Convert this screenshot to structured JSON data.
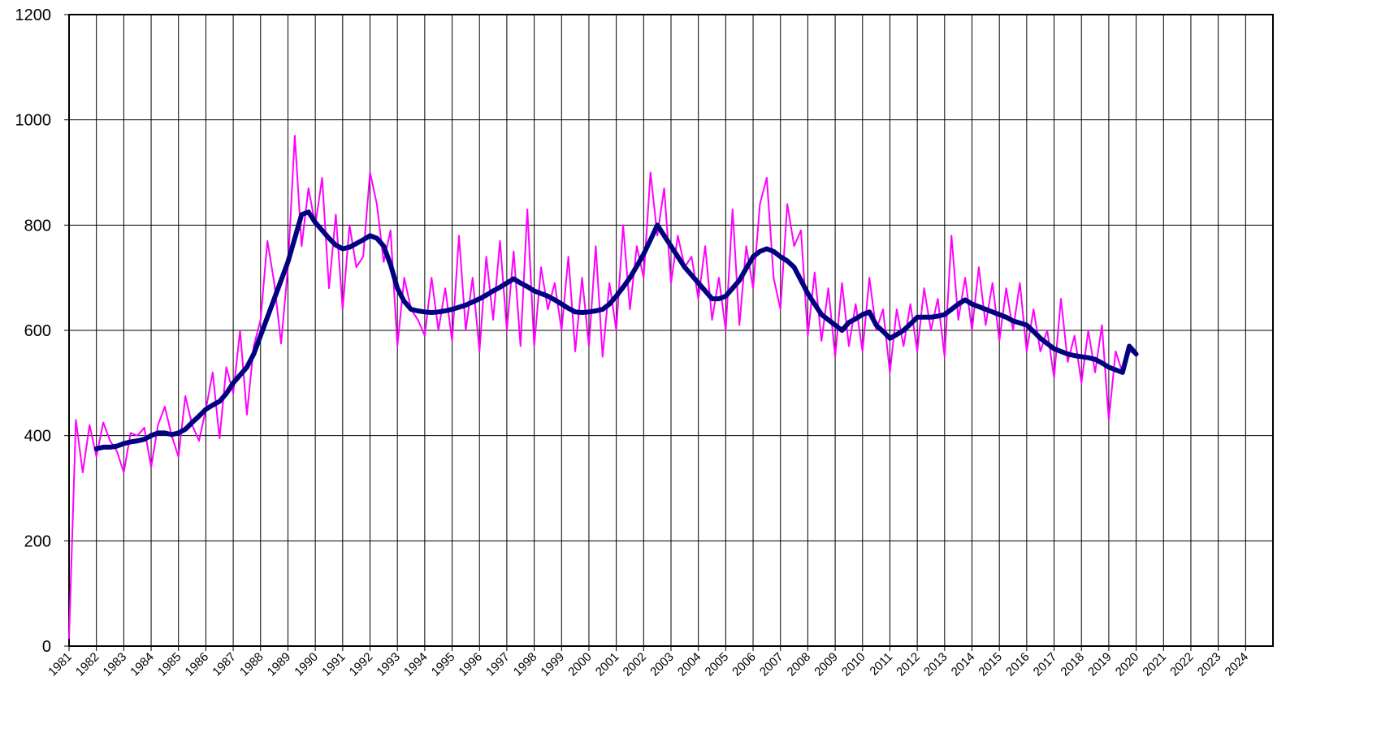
{
  "chart_data": {
    "type": "line",
    "x": [
      1981,
      1981.25,
      1981.5,
      1981.75,
      1982,
      1982.25,
      1982.5,
      1982.75,
      1983,
      1983.25,
      1983.5,
      1983.75,
      1984,
      1984.25,
      1984.5,
      1984.75,
      1985,
      1985.25,
      1985.5,
      1985.75,
      1986,
      1986.25,
      1986.5,
      1986.75,
      1987,
      1987.25,
      1987.5,
      1987.75,
      1988,
      1988.25,
      1988.5,
      1988.75,
      1989,
      1989.25,
      1989.5,
      1989.75,
      1990,
      1990.25,
      1990.5,
      1990.75,
      1991,
      1991.25,
      1991.5,
      1991.75,
      1992,
      1992.25,
      1992.5,
      1992.75,
      1993,
      1993.25,
      1993.5,
      1993.75,
      1994,
      1994.25,
      1994.5,
      1994.75,
      1995,
      1995.25,
      1995.5,
      1995.75,
      1996,
      1996.25,
      1996.5,
      1996.75,
      1997,
      1997.25,
      1997.5,
      1997.75,
      1998,
      1998.25,
      1998.5,
      1998.75,
      1999,
      1999.25,
      1999.5,
      1999.75,
      2000,
      2000.25,
      2000.5,
      2000.75,
      2001,
      2001.25,
      2001.5,
      2001.75,
      2002,
      2002.25,
      2002.5,
      2002.75,
      2003,
      2003.25,
      2003.5,
      2003.75,
      2004,
      2004.25,
      2004.5,
      2004.75,
      2005,
      2005.25,
      2005.5,
      2005.75,
      2006,
      2006.25,
      2006.5,
      2006.75,
      2007,
      2007.25,
      2007.5,
      2007.75,
      2008,
      2008.25,
      2008.5,
      2008.75,
      2009,
      2009.25,
      2009.5,
      2009.75,
      2010,
      2010.25,
      2010.5,
      2010.75,
      2011,
      2011.25,
      2011.5,
      2011.75,
      2012,
      2012.25,
      2012.5,
      2012.75,
      2013,
      2013.25,
      2013.5,
      2013.75,
      2014,
      2014.25,
      2014.5,
      2014.75,
      2015,
      2015.25,
      2015.5,
      2015.75,
      2016,
      2016.25,
      2016.5,
      2016.75,
      2017,
      2017.25,
      2017.5,
      2017.75,
      2018,
      2018.25,
      2018.5,
      2018.75,
      2019,
      2019.25,
      2019.5,
      2019.75,
      2020
    ],
    "series": [
      {
        "color": "#ff00ff",
        "width": 2,
        "values": [
          15,
          430,
          330,
          420,
          360,
          425,
          390,
          370,
          330,
          405,
          400,
          415,
          340,
          420,
          455,
          400,
          360,
          475,
          420,
          390,
          450,
          520,
          395,
          530,
          480,
          600,
          440,
          570,
          620,
          770,
          690,
          575,
          720,
          970,
          760,
          870,
          800,
          890,
          680,
          820,
          640,
          800,
          720,
          740,
          900,
          840,
          730,
          790,
          570,
          700,
          640,
          620,
          590,
          700,
          600,
          680,
          580,
          780,
          600,
          700,
          560,
          740,
          620,
          770,
          600,
          750,
          570,
          830,
          570,
          720,
          640,
          690,
          600,
          740,
          560,
          700,
          570,
          760,
          550,
          690,
          600,
          800,
          640,
          760,
          700,
          900,
          780,
          870,
          690,
          780,
          720,
          740,
          660,
          760,
          620,
          700,
          600,
          830,
          610,
          760,
          680,
          840,
          890,
          700,
          640,
          840,
          760,
          790,
          590,
          710,
          580,
          680,
          550,
          690,
          570,
          650,
          560,
          700,
          600,
          640,
          520,
          640,
          570,
          650,
          560,
          680,
          600,
          660,
          550,
          780,
          620,
          700,
          600,
          720,
          610,
          690,
          580,
          680,
          600,
          690,
          560,
          640,
          560,
          600,
          510,
          660,
          540,
          590,
          500,
          600,
          520,
          610,
          430,
          560,
          520,
          560,
          555
        ]
      },
      {
        "color": "#000080",
        "width": 6,
        "values": [
          null,
          null,
          null,
          null,
          375,
          378,
          378,
          380,
          385,
          388,
          390,
          393,
          400,
          405,
          405,
          402,
          405,
          412,
          425,
          437,
          450,
          458,
          465,
          480,
          500,
          515,
          530,
          555,
          590,
          625,
          660,
          695,
          730,
          775,
          820,
          825,
          805,
          790,
          775,
          762,
          755,
          758,
          765,
          772,
          780,
          775,
          760,
          725,
          680,
          655,
          640,
          637,
          635,
          634,
          635,
          637,
          640,
          644,
          648,
          654,
          660,
          667,
          675,
          682,
          690,
          698,
          690,
          683,
          675,
          670,
          665,
          658,
          650,
          642,
          635,
          634,
          635,
          637,
          640,
          650,
          665,
          682,
          700,
          722,
          745,
          772,
          800,
          780,
          760,
          740,
          720,
          705,
          690,
          675,
          660,
          660,
          665,
          680,
          695,
          718,
          740,
          750,
          755,
          750,
          740,
          732,
          720,
          695,
          670,
          650,
          630,
          620,
          610,
          600,
          615,
          622,
          630,
          635,
          610,
          598,
          585,
          592,
          600,
          612,
          625,
          625,
          625,
          627,
          630,
          640,
          650,
          658,
          650,
          645,
          640,
          635,
          630,
          625,
          618,
          614,
          610,
          598,
          585,
          575,
          565,
          560,
          555,
          552,
          550,
          548,
          545,
          538,
          530,
          525,
          520,
          570,
          555
        ]
      }
    ],
    "xlim": [
      1981,
      2025
    ],
    "xticks": [
      1981,
      1982,
      1983,
      1984,
      1985,
      1986,
      1987,
      1988,
      1989,
      1990,
      1991,
      1992,
      1993,
      1994,
      1995,
      1996,
      1997,
      1998,
      1999,
      2000,
      2001,
      2002,
      2003,
      2004,
      2005,
      2006,
      2007,
      2008,
      2009,
      2010,
      2011,
      2012,
      2013,
      2014,
      2015,
      2016,
      2017,
      2018,
      2019,
      2020,
      2021,
      2022,
      2023,
      2024
    ],
    "ylim": [
      0,
      1200
    ],
    "yticks": [
      0,
      200,
      400,
      600,
      800,
      1000,
      1200
    ],
    "grid": true
  }
}
